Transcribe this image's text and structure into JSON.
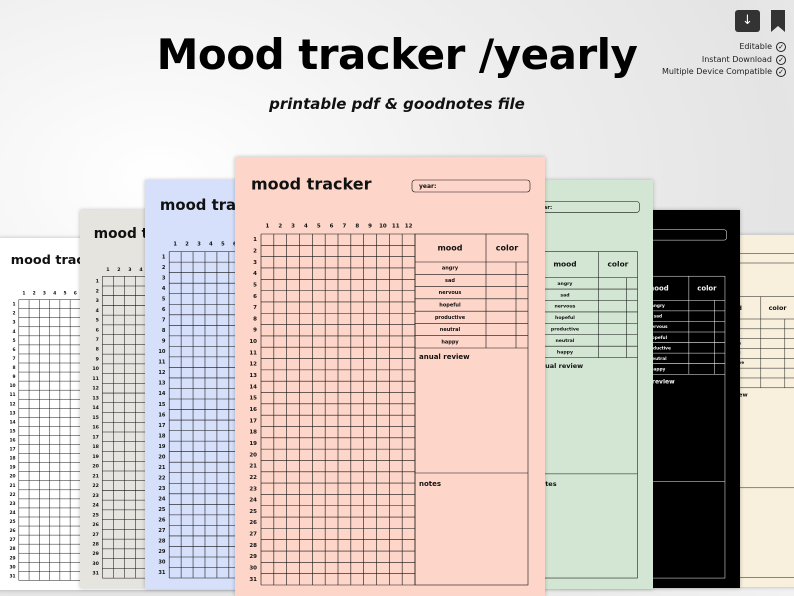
{
  "header": {
    "title": "Mood tracker /yearly",
    "subtitle": "printable pdf & goodnotes file"
  },
  "features": [
    "Editable",
    "Instant Download",
    "Multiple Device Compatible"
  ],
  "planner": {
    "title": "mood tracker",
    "year_label": "year:",
    "months": [
      1,
      2,
      3,
      4,
      5,
      6,
      7,
      8,
      9,
      10,
      11,
      12
    ],
    "days": [
      1,
      2,
      3,
      4,
      5,
      6,
      7,
      8,
      9,
      10,
      11,
      12,
      13,
      14,
      15,
      16,
      17,
      18,
      19,
      20,
      21,
      22,
      23,
      24,
      25,
      26,
      27,
      28,
      29,
      30,
      31
    ],
    "mood_header": "mood",
    "color_header": "color",
    "moods": [
      "angry",
      "sad",
      "nervous",
      "hopeful",
      "productive",
      "neutral",
      "happy"
    ],
    "review_label": "anual review",
    "notes_label": "notes"
  }
}
